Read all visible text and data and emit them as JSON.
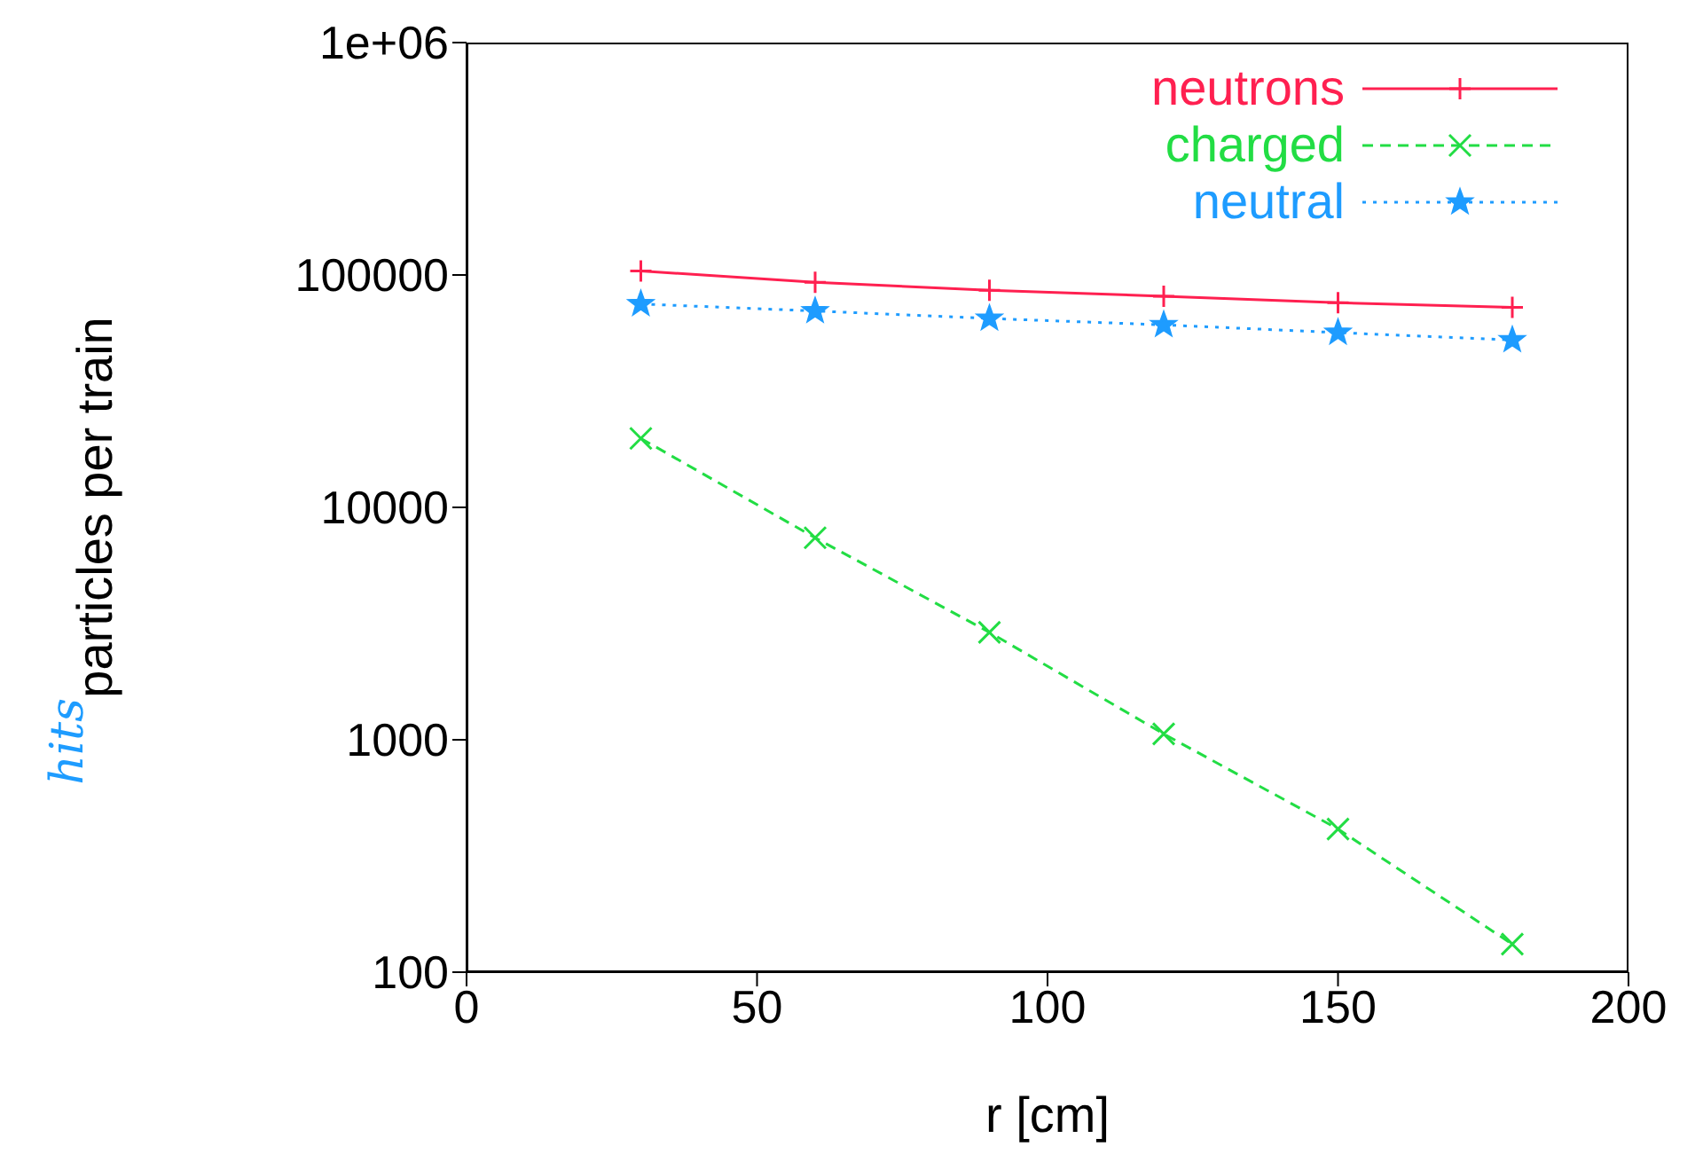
{
  "chart_data": {
    "type": "line",
    "xlabel": "r [cm]",
    "ylabel": "particles per train",
    "annotations": [
      "hits"
    ],
    "x": [
      30,
      60,
      90,
      120,
      150,
      180
    ],
    "series": [
      {
        "name": "neutrons",
        "color": "#ff2050",
        "values": [
          104000,
          93000,
          86000,
          81000,
          76000,
          72500
        ],
        "line_style": "solid",
        "marker": "plus"
      },
      {
        "name": "charged",
        "color": "#22dd44",
        "values": [
          19800,
          7400,
          2900,
          1060,
          413,
          132
        ],
        "line_style": "dashed",
        "marker": "cross"
      },
      {
        "name": "neutral",
        "color": "#1e9cff",
        "values": [
          75000,
          70000,
          65000,
          61000,
          56500,
          52500
        ],
        "line_style": "dotted",
        "marker": "star"
      }
    ],
    "log": "y",
    "xlim": [
      0,
      200
    ],
    "xticks": [
      0,
      50,
      100,
      150,
      200
    ],
    "ylim": [
      100,
      1000000
    ],
    "yticks": [
      100,
      1000,
      10000,
      100000,
      {
        "value": 1000000,
        "label": "1e+06"
      }
    ],
    "grid": false,
    "legend": "top right"
  }
}
